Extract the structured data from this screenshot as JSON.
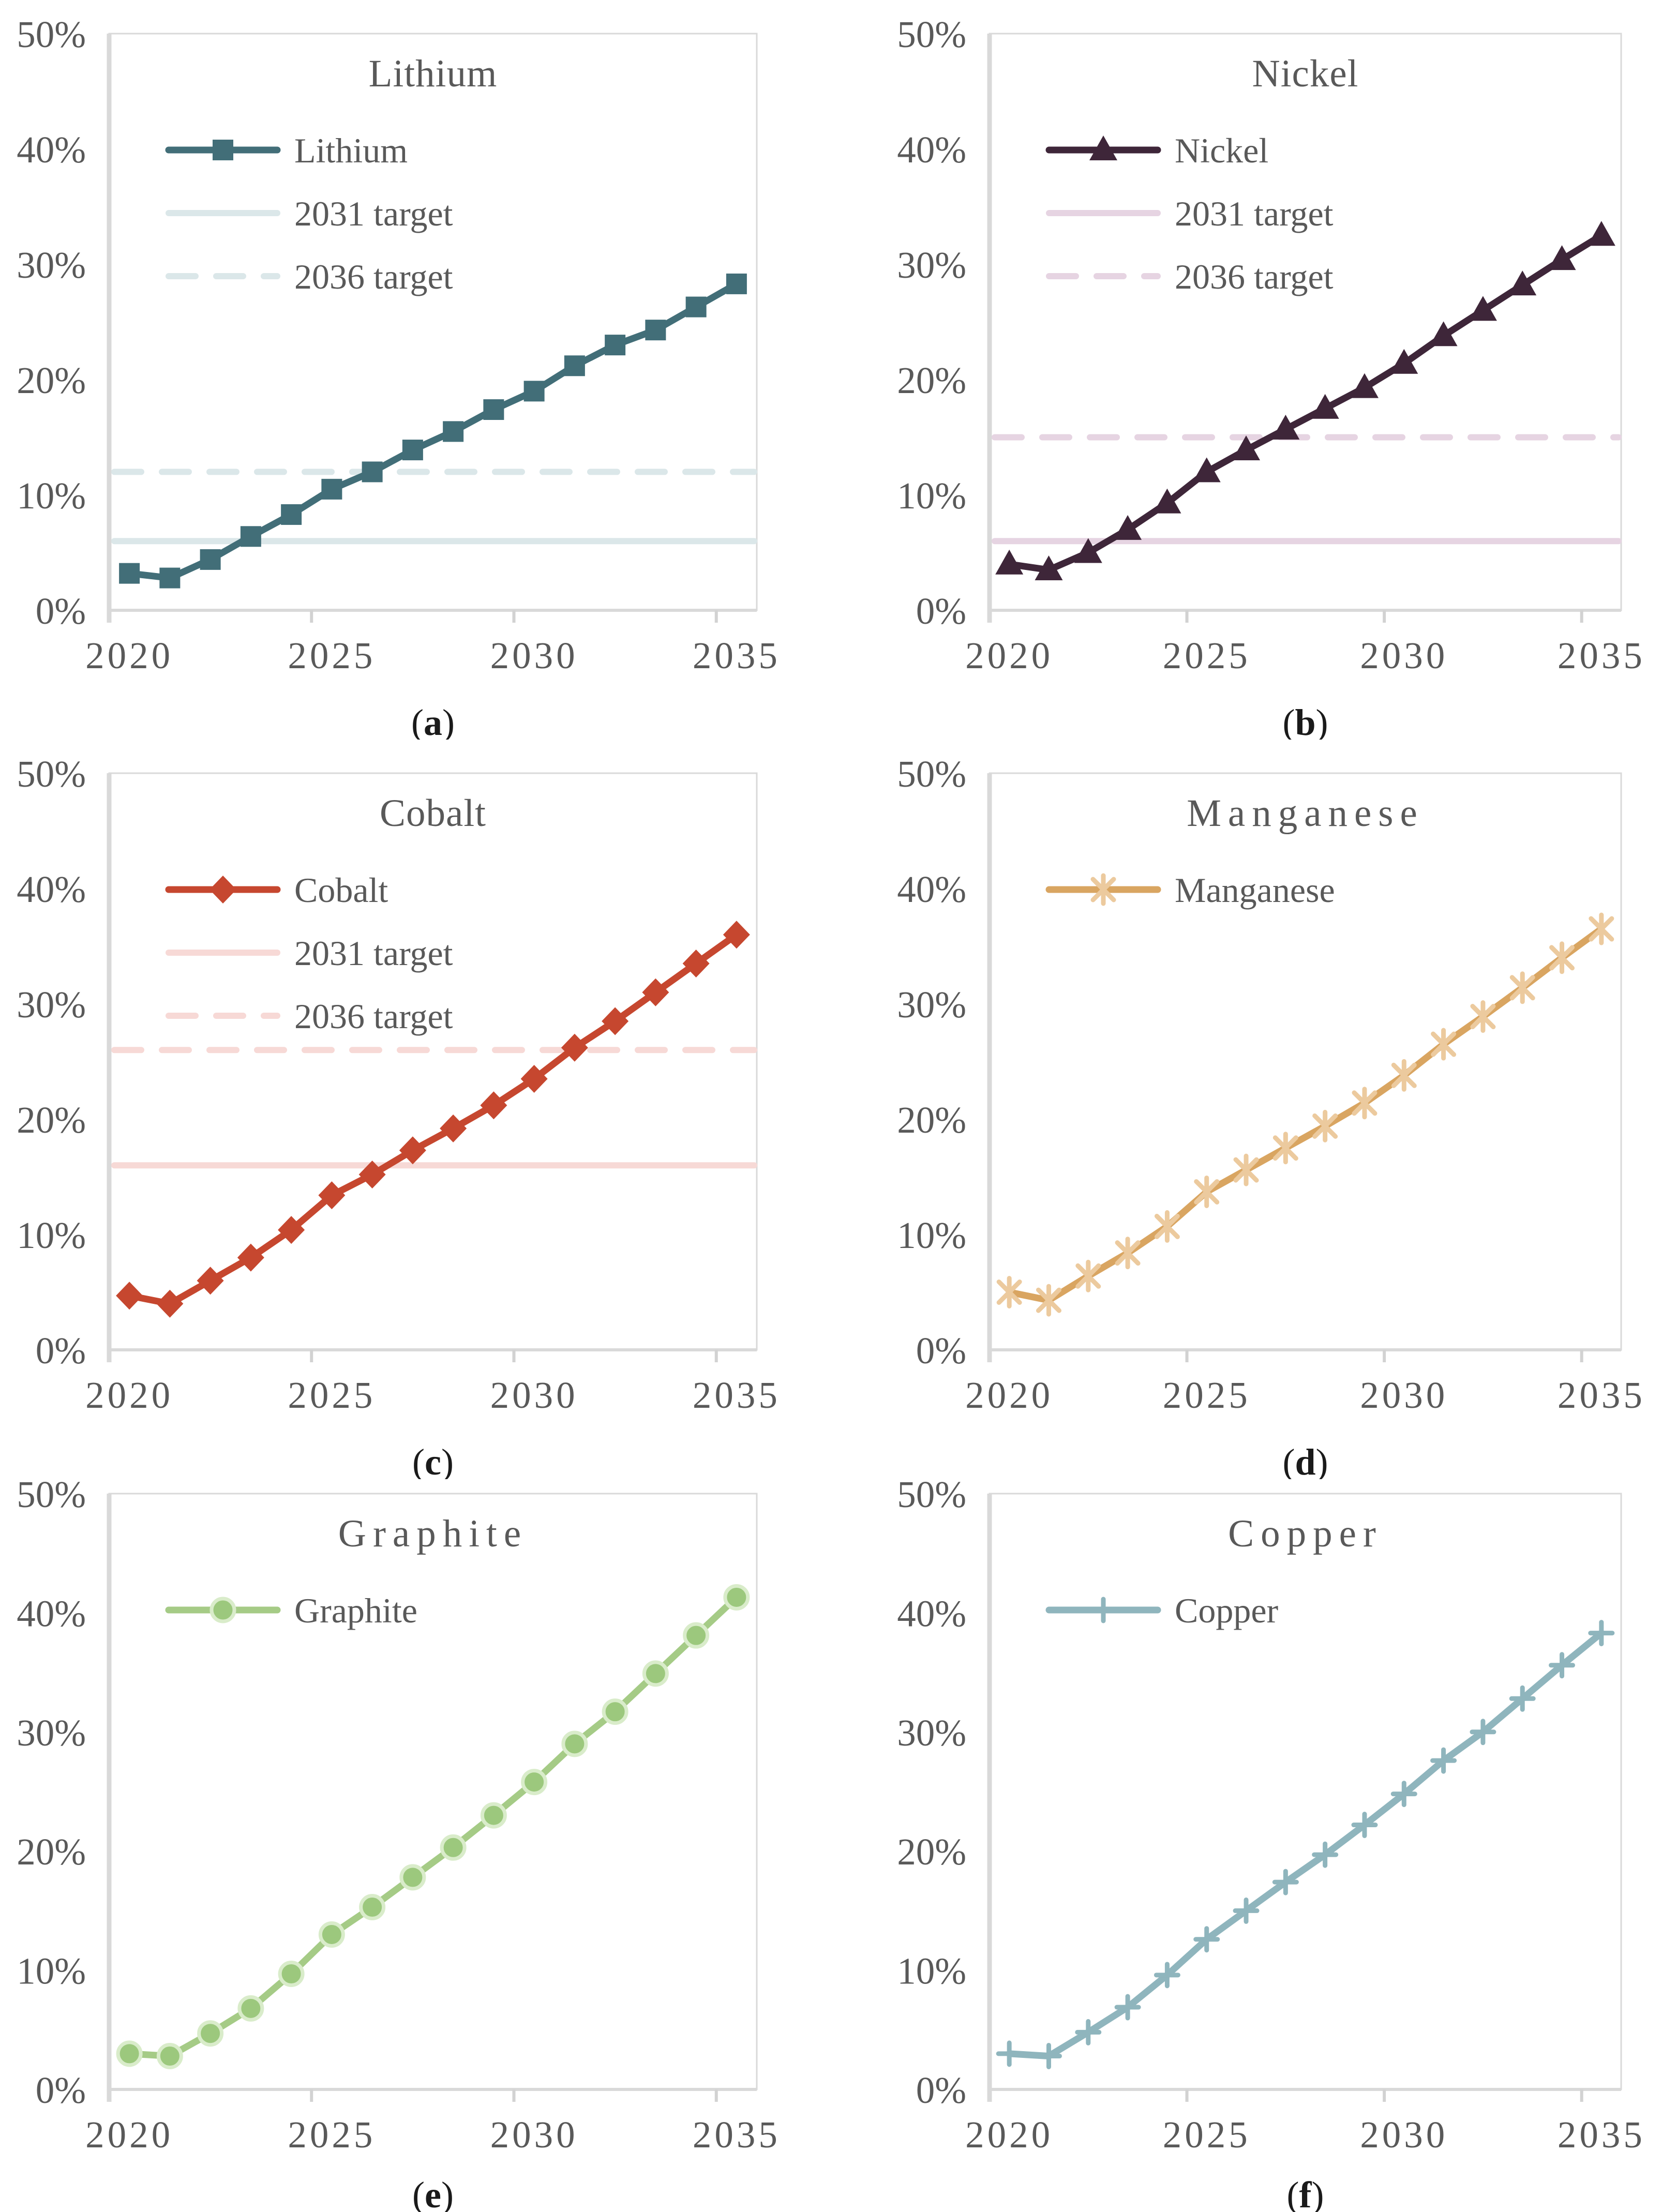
{
  "figure": {
    "background": "#ffffff",
    "text_color": "#595959",
    "axis_color": "#d9d9d9",
    "tick_color": "#d2d2d2",
    "caption_color": "#1a1a1a",
    "ytick_labels": [
      "0%",
      "10%",
      "20%",
      "30%",
      "40%",
      "50%"
    ],
    "xtick_labels": [
      "2020",
      "2025",
      "2030",
      "2035"
    ]
  },
  "chart_data": [
    {
      "panel": "a",
      "type": "line",
      "title": "Lithium",
      "title_spaced": false,
      "x": [
        2020,
        2021,
        2022,
        2023,
        2024,
        2025,
        2026,
        2027,
        2028,
        2029,
        2030,
        2031,
        2032,
        2033,
        2034,
        2035
      ],
      "ylim": [
        0,
        50
      ],
      "grid": false,
      "legend_position": "top-left-inside",
      "series": [
        {
          "name": "Lithium",
          "marker": "square",
          "color": "#426e78",
          "values": [
            3.2,
            2.8,
            4.4,
            6.4,
            8.3,
            10.5,
            12.0,
            13.9,
            15.5,
            17.4,
            19.0,
            21.2,
            23.0,
            24.3,
            26.3,
            28.3
          ]
        }
      ],
      "targets": [
        {
          "name": "2031 target",
          "style": "solid",
          "value": 6,
          "color": "#dbe7e9"
        },
        {
          "name": "2036 target",
          "style": "dashed",
          "value": 12,
          "color": "#dbe7e9"
        }
      ]
    },
    {
      "panel": "b",
      "type": "line",
      "title": "Nickel",
      "title_spaced": false,
      "x": [
        2020,
        2021,
        2022,
        2023,
        2024,
        2025,
        2026,
        2027,
        2028,
        2029,
        2030,
        2031,
        2032,
        2033,
        2034,
        2035
      ],
      "ylim": [
        0,
        50
      ],
      "grid": false,
      "legend_position": "top-left-inside",
      "series": [
        {
          "name": "Nickel",
          "marker": "triangle",
          "color": "#3e2639",
          "values": [
            4.0,
            3.5,
            5.0,
            7.0,
            9.3,
            12.0,
            13.9,
            15.7,
            17.5,
            19.3,
            21.4,
            23.8,
            26.0,
            28.2,
            30.4,
            32.5
          ]
        }
      ],
      "targets": [
        {
          "name": "2031 target",
          "style": "solid",
          "value": 6,
          "color": "#e6d4e2"
        },
        {
          "name": "2036 target",
          "style": "dashed",
          "value": 15,
          "color": "#e6d4e2"
        }
      ]
    },
    {
      "panel": "c",
      "type": "line",
      "title": "Cobalt",
      "title_spaced": false,
      "x": [
        2020,
        2021,
        2022,
        2023,
        2024,
        2025,
        2026,
        2027,
        2028,
        2029,
        2030,
        2031,
        2032,
        2033,
        2034,
        2035
      ],
      "ylim": [
        0,
        50
      ],
      "grid": false,
      "legend_position": "top-left-inside",
      "series": [
        {
          "name": "Cobalt",
          "marker": "diamond",
          "color": "#c6472f",
          "values": [
            4.7,
            4.0,
            6.0,
            8.0,
            10.4,
            13.4,
            15.2,
            17.3,
            19.2,
            21.2,
            23.5,
            26.2,
            28.5,
            31.0,
            33.5,
            36.0
          ]
        }
      ],
      "targets": [
        {
          "name": "2031 target",
          "style": "solid",
          "value": 16,
          "color": "#f7d9d6"
        },
        {
          "name": "2036 target",
          "style": "dashed",
          "value": 26,
          "color": "#f7d9d6"
        }
      ]
    },
    {
      "panel": "d",
      "type": "line",
      "title": "Manganese",
      "title_spaced": true,
      "x": [
        2020,
        2021,
        2022,
        2023,
        2024,
        2025,
        2026,
        2027,
        2028,
        2029,
        2030,
        2031,
        2032,
        2033,
        2034,
        2035
      ],
      "ylim": [
        0,
        50
      ],
      "grid": false,
      "legend_position": "top-left-inside",
      "series": [
        {
          "name": "Manganese",
          "marker": "asterisk",
          "color": "#d9a561",
          "marker_color": "#ecca9e",
          "values": [
            5.0,
            4.3,
            6.4,
            8.4,
            10.7,
            13.7,
            15.6,
            17.5,
            19.4,
            21.4,
            23.8,
            26.5,
            28.9,
            31.4,
            34.0,
            36.5
          ]
        }
      ],
      "targets": []
    },
    {
      "panel": "e",
      "type": "line",
      "title": "Graphite",
      "title_spaced": true,
      "x": [
        2020,
        2021,
        2022,
        2023,
        2024,
        2025,
        2026,
        2027,
        2028,
        2029,
        2030,
        2031,
        2032,
        2033,
        2034,
        2035
      ],
      "ylim": [
        0,
        50
      ],
      "grid": false,
      "legend_position": "top-left-inside",
      "series": [
        {
          "name": "Graphite",
          "marker": "circle",
          "color": "#a5cb86",
          "marker_color": "#9cc87d",
          "marker_ring": "#d9ecca",
          "values": [
            3.0,
            2.8,
            4.7,
            6.8,
            9.7,
            13.0,
            15.3,
            17.8,
            20.3,
            23.0,
            25.8,
            29.0,
            31.7,
            34.9,
            38.1,
            41.3
          ]
        }
      ],
      "targets": []
    },
    {
      "panel": "f",
      "type": "line",
      "title": "Copper",
      "title_spaced": true,
      "x": [
        2020,
        2021,
        2022,
        2023,
        2024,
        2025,
        2026,
        2027,
        2028,
        2029,
        2030,
        2031,
        2032,
        2033,
        2034,
        2035
      ],
      "ylim": [
        0,
        50
      ],
      "grid": false,
      "legend_position": "top-left-inside",
      "series": [
        {
          "name": "Copper",
          "marker": "plus",
          "color": "#8fb5bd",
          "values": [
            3.0,
            2.8,
            4.8,
            6.9,
            9.6,
            12.6,
            15.0,
            17.4,
            19.7,
            22.2,
            24.8,
            27.6,
            30.0,
            32.8,
            35.6,
            38.3
          ]
        }
      ],
      "targets": []
    }
  ]
}
